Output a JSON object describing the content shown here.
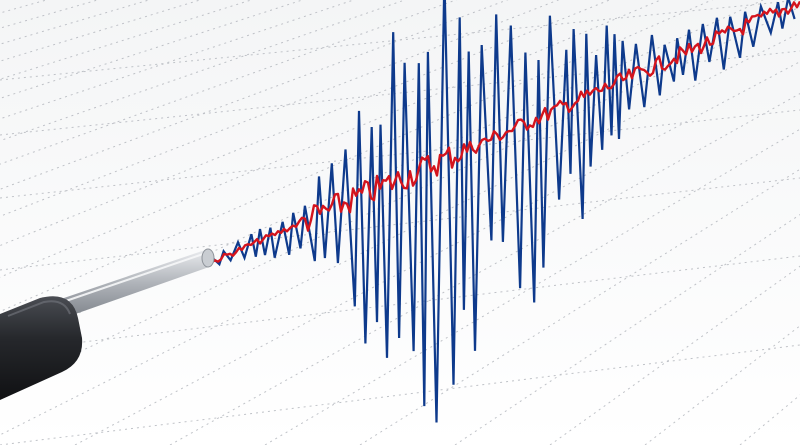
{
  "scene": {
    "subject": "seismograph",
    "paper_color": "#fafafa",
    "grid_color": "#b9bcc2",
    "trace_color": "#0e3a8c",
    "pen_trace_color": "#d4141d",
    "stylus_body_color": "#2b2d31",
    "stylus_rod_color": "#b8bcc2"
  }
}
